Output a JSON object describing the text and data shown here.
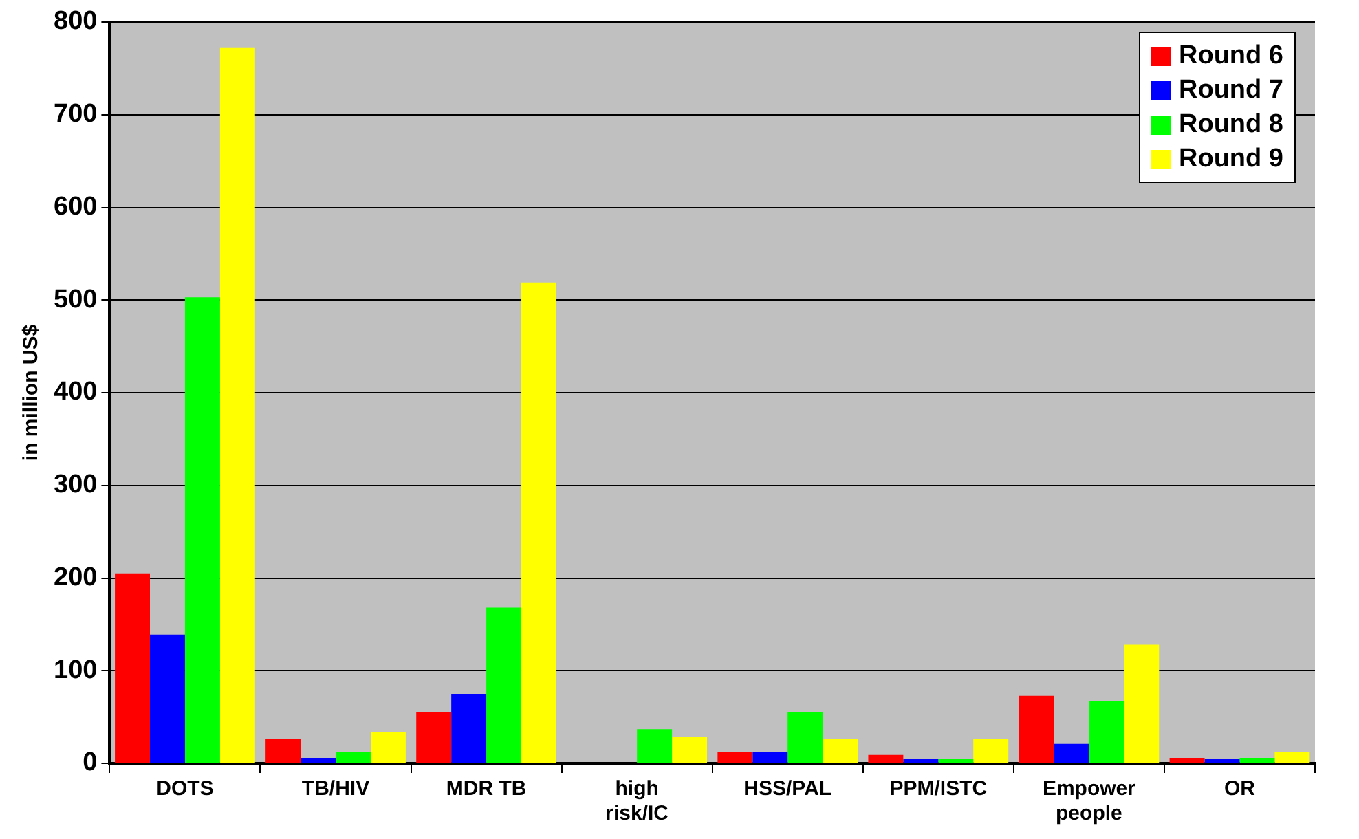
{
  "chart_data": {
    "type": "bar",
    "ylabel": "in million US$",
    "categories": [
      "DOTS",
      "TB/HIV",
      "MDR TB",
      "high risk/IC",
      "HSS/PAL",
      "PPM/ISTC",
      "Empower people",
      "OR"
    ],
    "series": [
      {
        "name": "Round 6",
        "color": "#ff0000",
        "values": [
          205,
          26,
          55,
          0,
          12,
          9,
          73,
          6
        ]
      },
      {
        "name": "Round 7",
        "color": "#0000ff",
        "values": [
          139,
          6,
          75,
          0,
          12,
          5,
          21,
          5
        ]
      },
      {
        "name": "Round 8",
        "color": "#00ff00",
        "values": [
          503,
          12,
          168,
          37,
          55,
          5,
          67,
          6
        ]
      },
      {
        "name": "Round 9",
        "color": "#ffff00",
        "values": [
          772,
          34,
          519,
          29,
          26,
          26,
          128,
          12
        ]
      }
    ],
    "ylim": [
      0,
      800
    ],
    "yticks": [
      0,
      100,
      200,
      300,
      400,
      500,
      600,
      700,
      800
    ],
    "grid": "y",
    "legend": "top right"
  }
}
